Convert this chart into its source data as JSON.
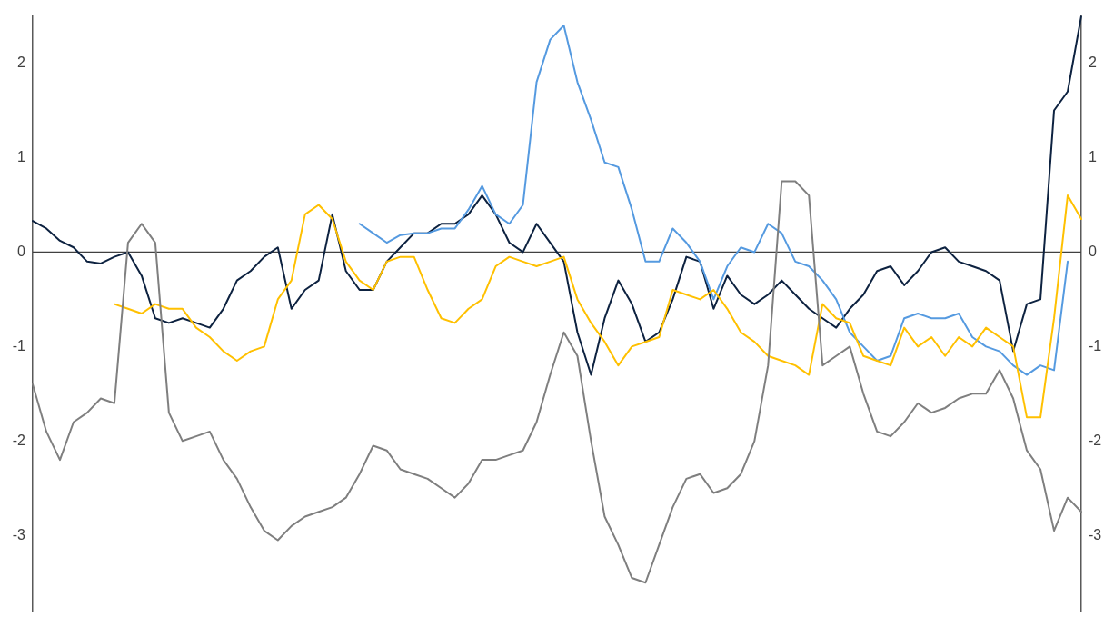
{
  "chart_data": {
    "type": "line",
    "categories": [
      null,
      null,
      null,
      null,
      null,
      null,
      null,
      null,
      null,
      null,
      null,
      null,
      null,
      null,
      null,
      null,
      null,
      null,
      null,
      null,
      null,
      null,
      null,
      null,
      null,
      null,
      null,
      null,
      null,
      null,
      null,
      null,
      null,
      null,
      null,
      null,
      null,
      null,
      null,
      null,
      null,
      null,
      null,
      null,
      null,
      null,
      null,
      null,
      null,
      null,
      null,
      null,
      null,
      null,
      null,
      null,
      null,
      null,
      null,
      null,
      null,
      null,
      null,
      null,
      null,
      null,
      null,
      null,
      null,
      null,
      null,
      null,
      null,
      null,
      null,
      null,
      null,
      null
    ],
    "series": [
      {
        "color": "#7f7f7f",
        "values": [
          -1.4,
          -1.9,
          -2.2,
          -1.8,
          -1.7,
          -1.55,
          -1.6,
          0.1,
          0.3,
          0.1,
          -1.7,
          -2.0,
          -1.95,
          -1.9,
          -2.2,
          -2.4,
          -2.7,
          -2.95,
          -3.05,
          -2.9,
          -2.8,
          -2.75,
          -2.7,
          -2.6,
          -2.35,
          -2.05,
          -2.1,
          -2.3,
          -2.35,
          -2.4,
          -2.5,
          -2.6,
          -2.45,
          -2.2,
          -2.2,
          -2.15,
          -2.1,
          -1.8,
          -1.3,
          -0.85,
          -1.1,
          -2.0,
          -2.8,
          -3.1,
          -3.45,
          -3.5,
          -3.1,
          -2.7,
          -2.4,
          -2.35,
          -2.55,
          -2.5,
          -2.35,
          -2.0,
          -1.2,
          0.75,
          0.75,
          0.6,
          -1.2,
          -1.1,
          -1.0,
          -1.5,
          -1.9,
          -1.95,
          -1.8,
          -1.6,
          -1.7,
          -1.65,
          -1.55,
          -1.5,
          -1.5,
          -1.25,
          -1.55,
          -2.1,
          -2.3,
          -2.95,
          -2.6,
          -2.75
        ]
      },
      {
        "color": "#ffc000",
        "values": [
          null,
          null,
          null,
          null,
          null,
          null,
          -0.55,
          -0.6,
          -0.65,
          -0.55,
          -0.6,
          -0.6,
          -0.8,
          -0.9,
          -1.05,
          -1.15,
          -1.05,
          -1.0,
          -0.5,
          -0.3,
          0.4,
          0.5,
          0.35,
          -0.1,
          -0.3,
          -0.4,
          -0.1,
          -0.05,
          -0.05,
          -0.4,
          -0.7,
          -0.75,
          -0.6,
          -0.5,
          -0.15,
          -0.05,
          -0.1,
          -0.15,
          -0.1,
          -0.05,
          -0.5,
          -0.75,
          -0.95,
          -1.2,
          -1.0,
          -0.95,
          -0.9,
          -0.4,
          -0.45,
          -0.5,
          -0.4,
          -0.6,
          -0.85,
          -0.95,
          -1.1,
          -1.15,
          -1.2,
          -1.3,
          -0.55,
          -0.7,
          -0.75,
          -1.1,
          -1.15,
          -1.2,
          -0.8,
          -1.0,
          -0.9,
          -1.1,
          -0.9,
          -1.0,
          -0.8,
          -0.9,
          -1.0,
          -1.75,
          -1.75,
          -0.7,
          0.6,
          0.35
        ]
      },
      {
        "color": "#559ae0",
        "values": [
          null,
          null,
          null,
          null,
          null,
          null,
          null,
          null,
          null,
          null,
          null,
          null,
          null,
          null,
          null,
          null,
          null,
          null,
          null,
          null,
          null,
          null,
          null,
          null,
          0.3,
          0.2,
          0.1,
          0.18,
          0.2,
          0.2,
          0.25,
          0.25,
          0.45,
          0.7,
          0.4,
          0.3,
          0.5,
          1.8,
          2.25,
          2.4,
          1.8,
          1.4,
          0.95,
          0.9,
          0.45,
          -0.1,
          -0.1,
          0.25,
          0.1,
          -0.1,
          -0.5,
          -0.15,
          0.05,
          0.0,
          0.3,
          0.2,
          -0.1,
          -0.15,
          -0.3,
          -0.5,
          -0.85,
          -1.0,
          -1.15,
          -1.1,
          -0.7,
          -0.65,
          -0.7,
          -0.7,
          -0.65,
          -0.9,
          -1.0,
          -1.05,
          -1.2,
          -1.3,
          -1.2,
          -1.25,
          -0.1,
          null
        ]
      },
      {
        "color": "#0d2240",
        "values": [
          0.33,
          0.25,
          0.12,
          0.05,
          -0.1,
          -0.12,
          -0.05,
          0.0,
          -0.25,
          -0.7,
          -0.75,
          -0.7,
          -0.75,
          -0.8,
          -0.6,
          -0.3,
          -0.2,
          -0.05,
          0.05,
          -0.6,
          -0.4,
          -0.3,
          0.4,
          -0.2,
          -0.4,
          -0.4,
          -0.1,
          0.05,
          0.2,
          0.2,
          0.3,
          0.3,
          0.4,
          0.6,
          0.4,
          0.1,
          0.0,
          0.3,
          0.1,
          -0.1,
          -0.85,
          -1.3,
          -0.7,
          -0.3,
          -0.55,
          -0.95,
          -0.85,
          -0.5,
          -0.05,
          -0.1,
          -0.6,
          -0.25,
          -0.45,
          -0.55,
          -0.45,
          -0.3,
          -0.45,
          -0.6,
          -0.7,
          -0.8,
          -0.6,
          -0.45,
          -0.2,
          -0.15,
          -0.35,
          -0.2,
          0.0,
          0.05,
          -0.1,
          -0.15,
          -0.2,
          -0.3,
          -1.05,
          -0.55,
          -0.5,
          1.5,
          1.7,
          2.5
        ]
      }
    ],
    "ylim": [
      -3.8,
      2.5
    ],
    "yticks": [
      -3,
      -2,
      -1,
      0,
      1,
      2
    ],
    "y2lim": [
      -3.8,
      2.5
    ],
    "y2ticks": [
      -3,
      -2,
      -1,
      0,
      1,
      2
    ],
    "ref_lines": [
      {
        "axis": "y",
        "value": 0,
        "color": "#404040"
      }
    ],
    "tick_labels": "y",
    "grid": false,
    "legend": false,
    "marker": "none",
    "line_style": "solid"
  }
}
